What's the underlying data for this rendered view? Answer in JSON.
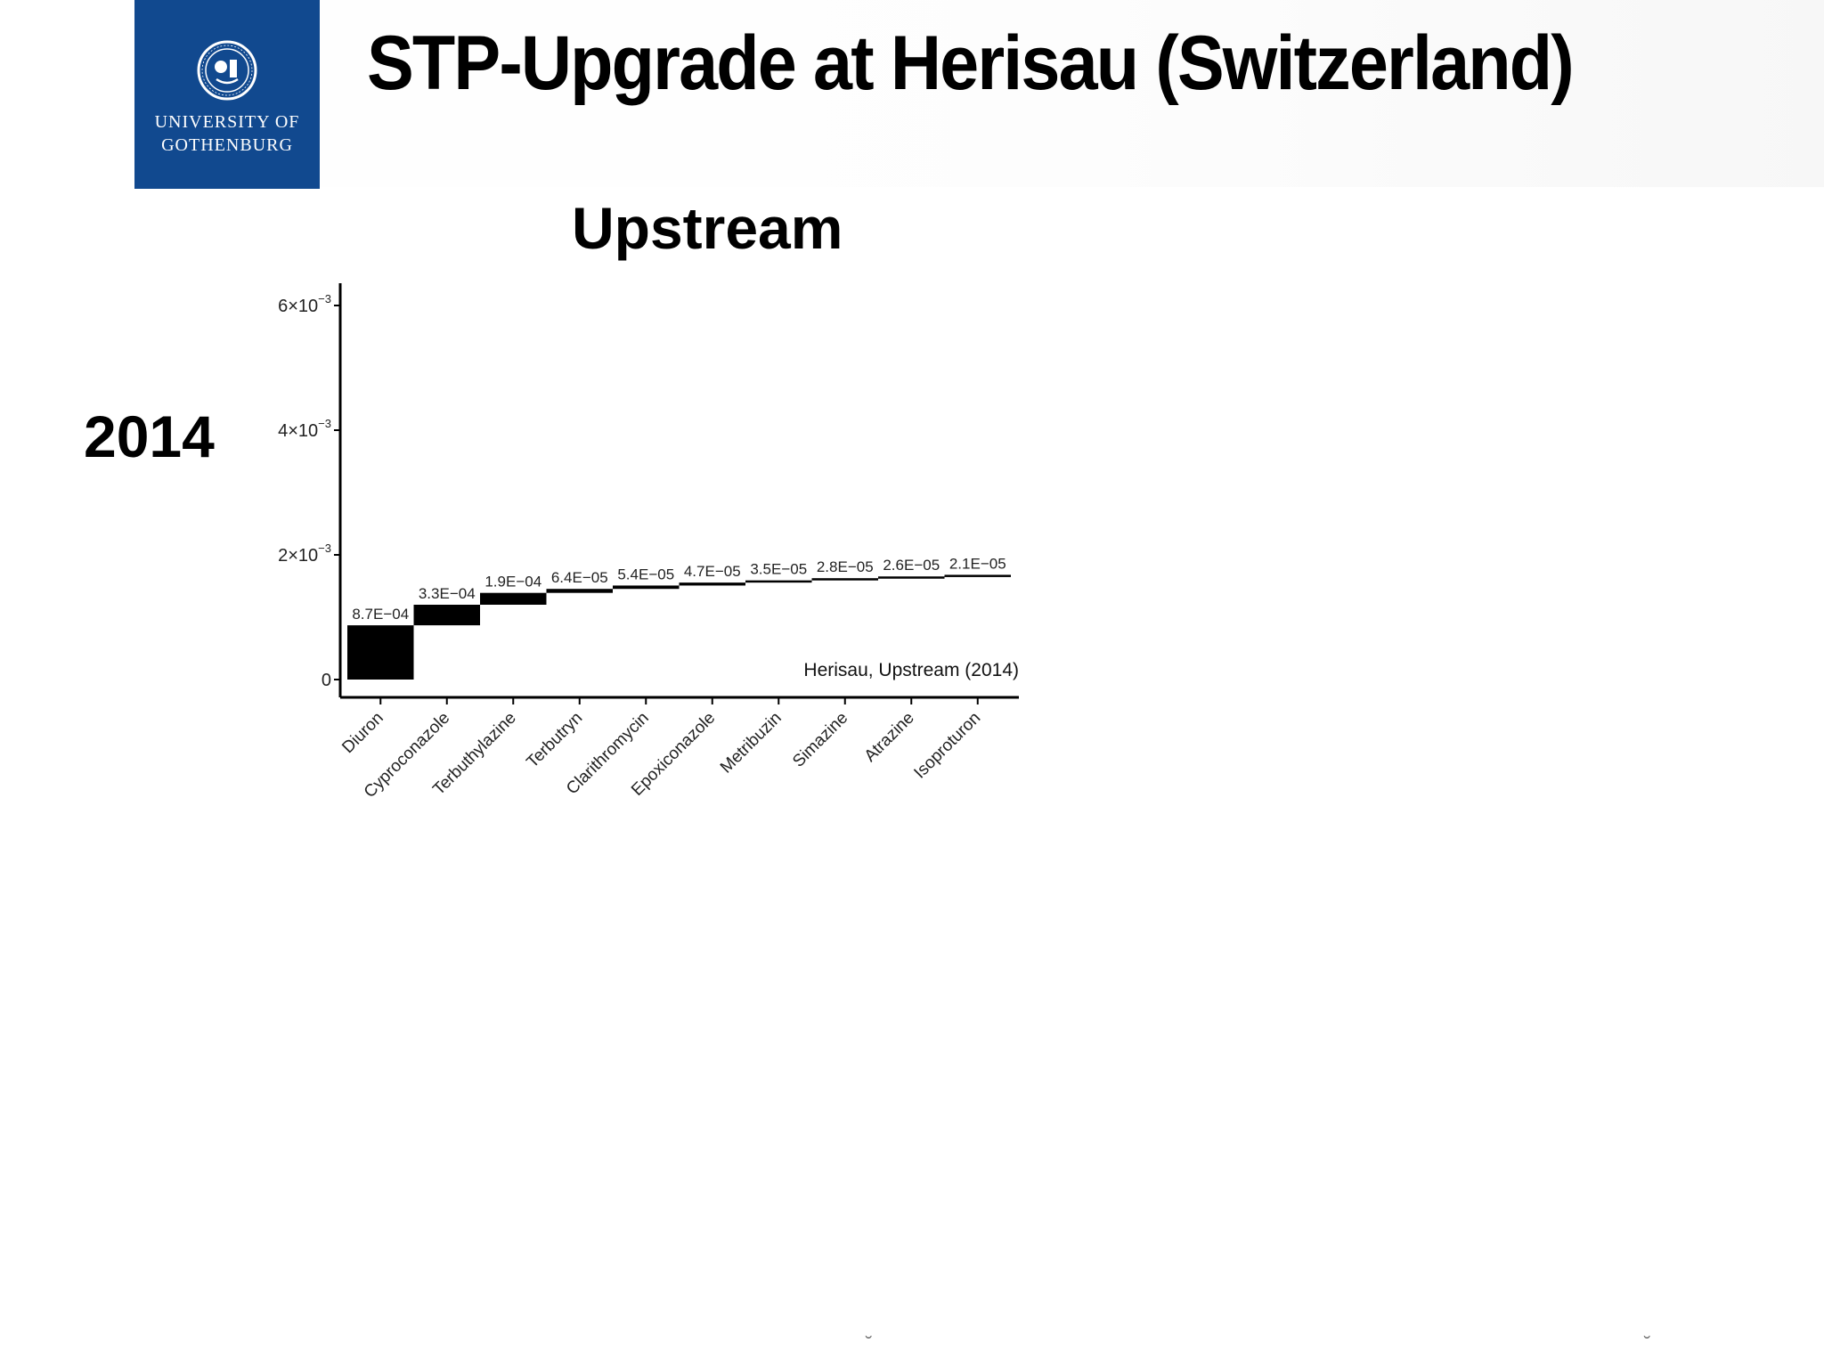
{
  "header": {
    "logo_line1": "UNIVERSITY OF",
    "logo_line2": "GOTHENBURG",
    "title": "STP-Upgrade at Herisau (Switzerland)"
  },
  "slide": {
    "subtitle": "Upstream",
    "year_label": "2014"
  },
  "chart_data": {
    "type": "bar",
    "subtype": "cumulative waterfall",
    "title": "",
    "annotation": "Herisau, Upstream (2014)",
    "xlabel": "",
    "ylabel": "",
    "categories": [
      "Diuron",
      "Cyproconazole",
      "Terbuthylazine",
      "Terbutryn",
      "Clarithromycin",
      "Epoxiconazole",
      "Metribuzin",
      "Simazine",
      "Atrazine",
      "Isoproturon"
    ],
    "values": [
      0.00087,
      0.00033,
      0.00019,
      6.4e-05,
      5.4e-05,
      4.7e-05,
      3.5e-05,
      2.8e-05,
      2.6e-05,
      2.1e-05
    ],
    "value_labels": [
      "8.7E−04",
      "3.3E−04",
      "1.9E−04",
      "6.4E−05",
      "5.4E−05",
      "4.7E−05",
      "3.5E−05",
      "2.8E−05",
      "2.6E−05",
      "2.1E−05"
    ],
    "yticks": [
      0,
      0.002,
      0.004,
      0.006
    ],
    "ytick_labels": [
      {
        "base": "0",
        "exp": ""
      },
      {
        "base": "2×10",
        "exp": "−3"
      },
      {
        "base": "4×10",
        "exp": "−3"
      },
      {
        "base": "6×10",
        "exp": "−3"
      }
    ],
    "ylim": [
      0,
      0.0065
    ],
    "grid": false,
    "bar_color": "#000000"
  }
}
